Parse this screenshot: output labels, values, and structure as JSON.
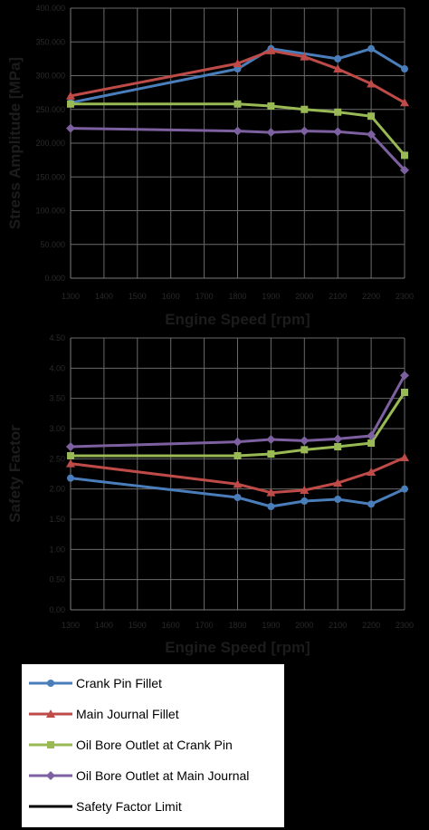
{
  "chart_data": [
    {
      "type": "line",
      "ylabel": "Stress Amplitude [MPa]",
      "xlabel": "Engine Speed [rpm]",
      "x_ticks": [
        "1300",
        "1400",
        "1500",
        "1600",
        "1700",
        "1800",
        "1900",
        "2000",
        "2100",
        "2200",
        "2300"
      ],
      "y_ticks": [
        "0.000",
        "50.000",
        "100.000",
        "150.000",
        "200.000",
        "250.000",
        "300.000",
        "350.000",
        "400.000"
      ],
      "ylim": [
        0,
        400
      ],
      "xlim": [
        1300,
        2300
      ],
      "grid": true,
      "series": [
        {
          "name": "Crank Pin Fillet",
          "x": [
            1300,
            1800,
            1900,
            2100,
            2200,
            2300
          ],
          "y": [
            260,
            310,
            340,
            325,
            340,
            310
          ]
        },
        {
          "name": "Main Journal Fillet",
          "x": [
            1300,
            1800,
            1900,
            2000,
            2100,
            2200,
            2300
          ],
          "y": [
            270,
            318,
            337,
            328,
            310,
            288,
            260
          ]
        },
        {
          "name": "Oil Bore Outlet at Crank Pin",
          "x": [
            1300,
            1800,
            1900,
            2000,
            2100,
            2200,
            2300
          ],
          "y": [
            258,
            258,
            255,
            250,
            246,
            240,
            182
          ]
        },
        {
          "name": "Oil Bore Outlet at Main Journal",
          "x": [
            1300,
            1800,
            1900,
            2000,
            2100,
            2200,
            2300
          ],
          "y": [
            222,
            218,
            216,
            218,
            217,
            213,
            160
          ]
        }
      ]
    },
    {
      "type": "line",
      "ylabel": "Safety Factor",
      "xlabel": "Engine Speed [rpm]",
      "x_ticks": [
        "1300",
        "1400",
        "1500",
        "1600",
        "1700",
        "1800",
        "1900",
        "2000",
        "2100",
        "2200",
        "2300"
      ],
      "y_ticks": [
        "0.00",
        "0.50",
        "1.00",
        "1.50",
        "2.00",
        "2.50",
        "3.00",
        "3.50",
        "4.00",
        "4.50"
      ],
      "ylim": [
        0,
        4.5
      ],
      "xlim": [
        1300,
        2300
      ],
      "grid": true,
      "series": [
        {
          "name": "Crank Pin Fillet",
          "x": [
            1300,
            1800,
            1900,
            2000,
            2100,
            2200,
            2300
          ],
          "y": [
            2.18,
            1.86,
            1.71,
            1.8,
            1.83,
            1.75,
            2.0
          ]
        },
        {
          "name": "Main Journal Fillet",
          "x": [
            1300,
            1800,
            1900,
            2000,
            2100,
            2200,
            2300
          ],
          "y": [
            2.42,
            2.08,
            1.94,
            1.98,
            2.1,
            2.28,
            2.52
          ]
        },
        {
          "name": "Oil Bore Outlet at Crank Pin",
          "x": [
            1300,
            1800,
            1900,
            2000,
            2100,
            2200,
            2300
          ],
          "y": [
            2.55,
            2.55,
            2.58,
            2.65,
            2.7,
            2.76,
            3.6
          ]
        },
        {
          "name": "Oil Bore Outlet at Main Journal",
          "x": [
            1300,
            1800,
            1900,
            2000,
            2100,
            2200,
            2300
          ],
          "y": [
            2.7,
            2.78,
            2.82,
            2.8,
            2.83,
            2.88,
            3.88
          ]
        }
      ]
    }
  ],
  "legend": [
    {
      "label": "Crank Pin Fillet",
      "color": "#4a7ebb",
      "marker": "circle"
    },
    {
      "label": "Main Journal Fillet",
      "color": "#be4b48",
      "marker": "triangle"
    },
    {
      "label": "Oil Bore Outlet at Crank Pin",
      "color": "#98b954",
      "marker": "square"
    },
    {
      "label": "Oil Bore Outlet at Main Journal",
      "color": "#7d60a0",
      "marker": "diamond"
    },
    {
      "label": "Safety Factor Limit",
      "color": "#000000",
      "marker": "none"
    }
  ]
}
